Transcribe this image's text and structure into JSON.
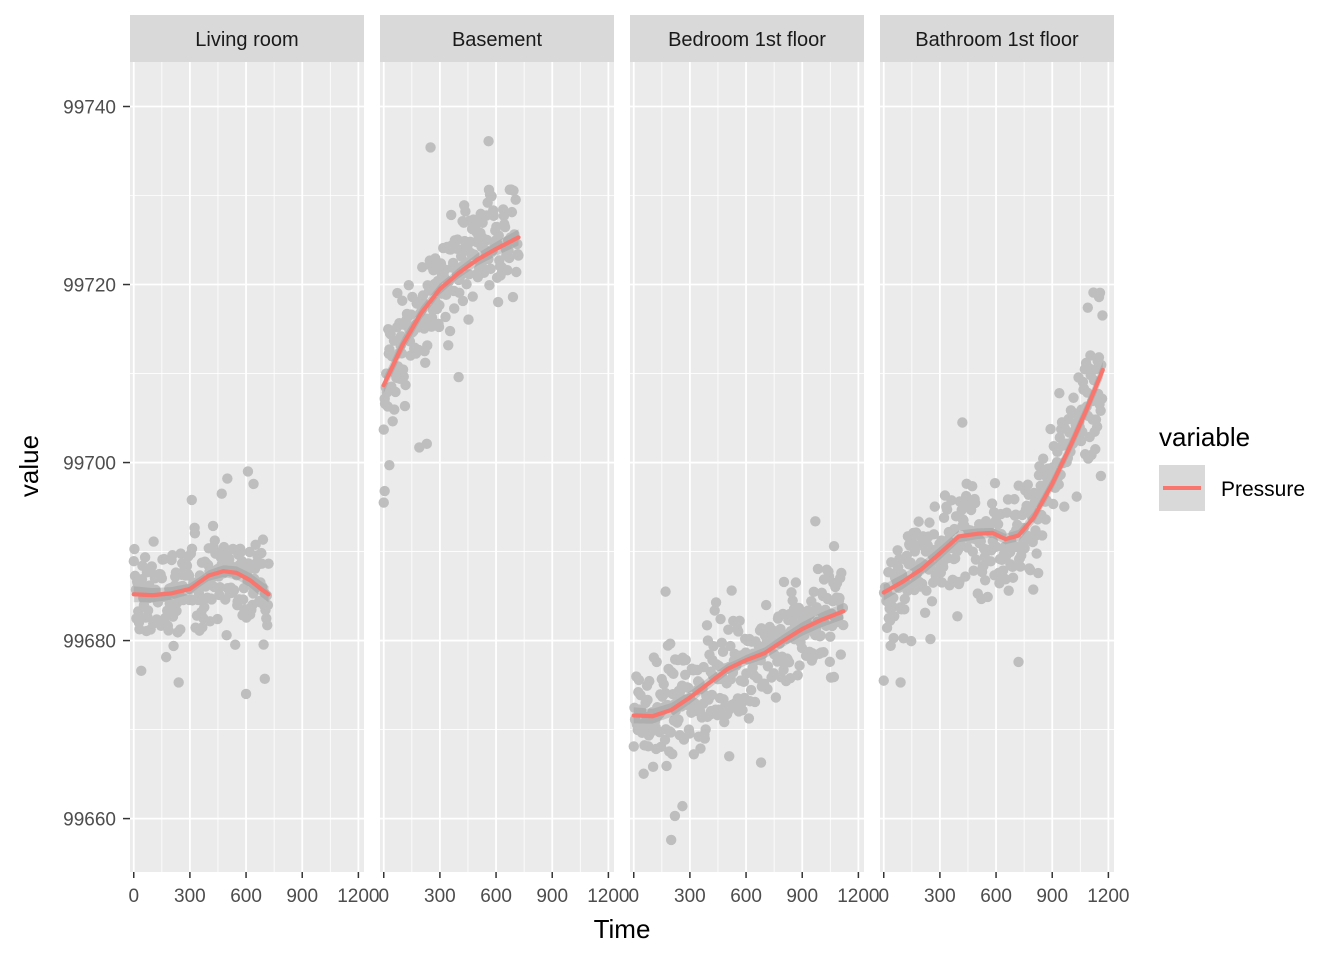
{
  "chart_data": {
    "type": "scatter",
    "layout": "faceted-1x4",
    "xlabel": "Time",
    "ylabel": "value",
    "xlim": [
      -20,
      1230
    ],
    "ylim": [
      99654,
      99745
    ],
    "x_ticks": [
      0,
      300,
      600,
      900,
      1200
    ],
    "x_tick_labels": [
      "0",
      "300",
      "600",
      "900",
      "1200"
    ],
    "y_ticks": [
      99660,
      99680,
      99700,
      99720,
      99740
    ],
    "y_tick_labels": [
      "99660",
      "99680",
      "99700",
      "99720",
      "99740"
    ],
    "grid": true,
    "point_color": "#bebebe",
    "line_color": "#f8766d",
    "band_color": "#999999",
    "panel_bg": "#ebebeb",
    "strip_bg": "#d9d9d9",
    "legend": {
      "title": "variable",
      "position": "right",
      "entries": [
        {
          "label": "Pressure",
          "color": "#f8766d"
        }
      ]
    },
    "facets": [
      {
        "label": "Living room",
        "x_range": [
          0,
          720
        ],
        "smooth": [
          [
            0,
            99685.2
          ],
          [
            100,
            99685.1
          ],
          [
            200,
            99685.3
          ],
          [
            300,
            99685.8
          ],
          [
            400,
            99687.3
          ],
          [
            480,
            99687.8
          ],
          [
            550,
            99687.6
          ],
          [
            620,
            99686.8
          ],
          [
            680,
            99685.8
          ],
          [
            720,
            99685.2
          ]
        ],
        "noise_sd": 2.8,
        "outliers": [
          [
            310,
            99695.8
          ],
          [
            470,
            99696.5
          ],
          [
            500,
            99698.2
          ],
          [
            610,
            99699.0
          ],
          [
            640,
            99697.6
          ],
          [
            600,
            99674.0
          ],
          [
            240,
            99675.3
          ],
          [
            40,
            99676.6
          ],
          [
            700,
            99675.7
          ]
        ]
      },
      {
        "label": "Basement",
        "x_range": [
          0,
          720
        ],
        "smooth": [
          [
            0,
            99708.7
          ],
          [
            100,
            99713.2
          ],
          [
            200,
            99716.8
          ],
          [
            300,
            99719.5
          ],
          [
            400,
            99721.3
          ],
          [
            500,
            99722.8
          ],
          [
            600,
            99724.0
          ],
          [
            720,
            99725.3
          ]
        ],
        "noise_sd": 3.3,
        "outliers": [
          [
            0,
            99695.5
          ],
          [
            5,
            99696.8
          ],
          [
            250,
            99735.4
          ],
          [
            560,
            99736.1
          ],
          [
            30,
            99699.7
          ],
          [
            190,
            99701.7
          ],
          [
            230,
            99702.1
          ],
          [
            400,
            99709.6
          ]
        ]
      },
      {
        "label": "Bedroom 1st floor",
        "x_range": [
          0,
          1120
        ],
        "smooth": [
          [
            0,
            99671.6
          ],
          [
            100,
            99671.5
          ],
          [
            200,
            99672.2
          ],
          [
            300,
            99673.6
          ],
          [
            400,
            99675.2
          ],
          [
            500,
            99676.8
          ],
          [
            600,
            99677.8
          ],
          [
            700,
            99678.6
          ],
          [
            800,
            99680.0
          ],
          [
            900,
            99681.3
          ],
          [
            1000,
            99682.3
          ],
          [
            1120,
            99683.3
          ]
        ],
        "noise_sd": 3.1,
        "outliers": [
          [
            200,
            99657.6
          ],
          [
            260,
            99661.4
          ],
          [
            220,
            99660.3
          ],
          [
            970,
            99693.4
          ],
          [
            1070,
            99690.6
          ],
          [
            170,
            99685.5
          ],
          [
            680,
            99666.3
          ],
          [
            510,
            99667.0
          ]
        ]
      },
      {
        "label": "Bathroom 1st floor",
        "x_range": [
          0,
          1170
        ],
        "smooth": [
          [
            0,
            99685.4
          ],
          [
            100,
            99686.6
          ],
          [
            200,
            99688.0
          ],
          [
            300,
            99689.8
          ],
          [
            400,
            99691.7
          ],
          [
            500,
            99692.0
          ],
          [
            580,
            99692.1
          ],
          [
            650,
            99691.4
          ],
          [
            720,
            99691.8
          ],
          [
            800,
            99693.8
          ],
          [
            900,
            99697.6
          ],
          [
            1000,
            99702.0
          ],
          [
            1080,
            99705.8
          ],
          [
            1170,
            99710.4
          ]
        ],
        "noise_sd": 3.0,
        "outliers": [
          [
            1120,
            99719.1
          ],
          [
            1150,
            99718.6
          ],
          [
            1090,
            99717.4
          ],
          [
            720,
            99677.6
          ],
          [
            90,
            99675.3
          ],
          [
            0,
            99675.5
          ],
          [
            1160,
            99698.5
          ],
          [
            420,
            99704.5
          ]
        ]
      }
    ]
  }
}
